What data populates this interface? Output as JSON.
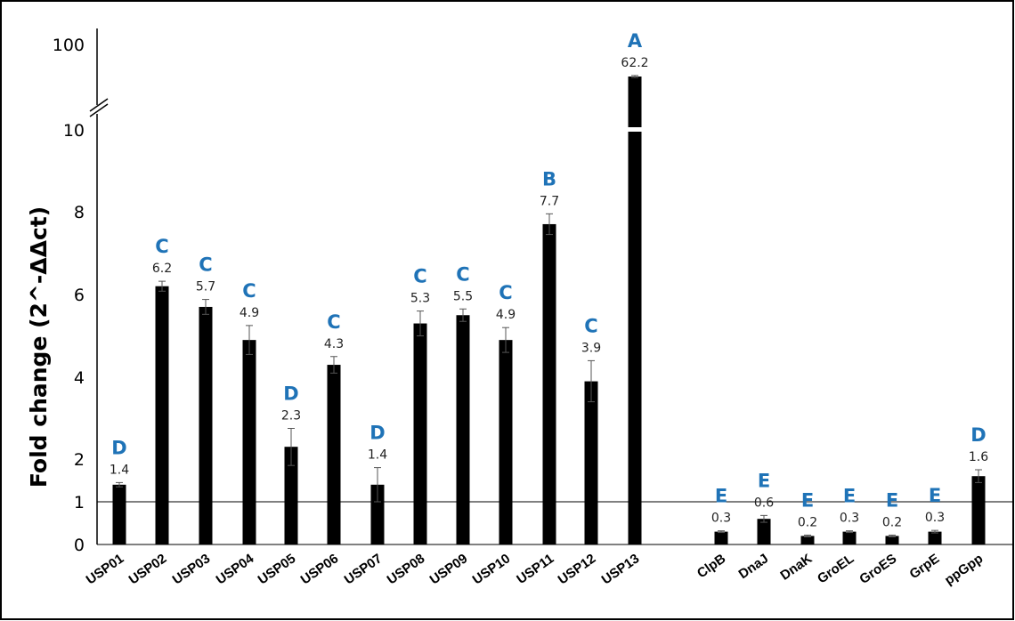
{
  "chart_data": {
    "type": "bar",
    "title": "",
    "xlabel": "",
    "ylabel": "Fold change (2^-ΔΔct)",
    "y_axis": {
      "scale": "broken",
      "ticks": [
        "0",
        "1",
        "2",
        "4",
        "6",
        "8",
        "10",
        "100"
      ],
      "break_between": [
        10,
        100
      ]
    },
    "reference_line": 1,
    "bar_color": "#000000",
    "group_label_color": "#1f73b7",
    "categories": [
      "USP01",
      "USP02",
      "USP03",
      "USP04",
      "USP05",
      "USP06",
      "USP07",
      "USP08",
      "USP09",
      "USP10",
      "USP11",
      "USP12",
      "USP13",
      "ClpB",
      "DnaJ",
      "DnaK",
      "GroEL",
      "GroES",
      "GrpE",
      "ppGpp"
    ],
    "values": [
      1.4,
      6.2,
      5.7,
      4.9,
      2.3,
      4.3,
      1.4,
      5.3,
      5.5,
      4.9,
      7.7,
      3.9,
      62.2,
      0.3,
      0.6,
      0.2,
      0.3,
      0.2,
      0.3,
      1.6
    ],
    "value_labels": [
      "1.4",
      "6.2",
      "5.7",
      "4.9",
      "2.3",
      "4.3",
      "1.4",
      "5.3",
      "5.5",
      "4.9",
      "7.7",
      "3.9",
      "62.2",
      "0.3",
      "0.6",
      "0.2",
      "0.3",
      "0.2",
      "0.3",
      "1.6"
    ],
    "errors": [
      0.05,
      0.12,
      0.18,
      0.35,
      0.45,
      0.2,
      0.4,
      0.3,
      0.15,
      0.3,
      0.25,
      0.5,
      1.0,
      0.02,
      0.08,
      0.02,
      0.02,
      0.02,
      0.03,
      0.15
    ],
    "group_labels": [
      "D",
      "C",
      "C",
      "C",
      "D",
      "C",
      "D",
      "C",
      "C",
      "C",
      "B",
      "C",
      "A",
      "E",
      "E",
      "E",
      "E",
      "E",
      "E",
      "D"
    ],
    "grid": false,
    "legend": "none"
  }
}
